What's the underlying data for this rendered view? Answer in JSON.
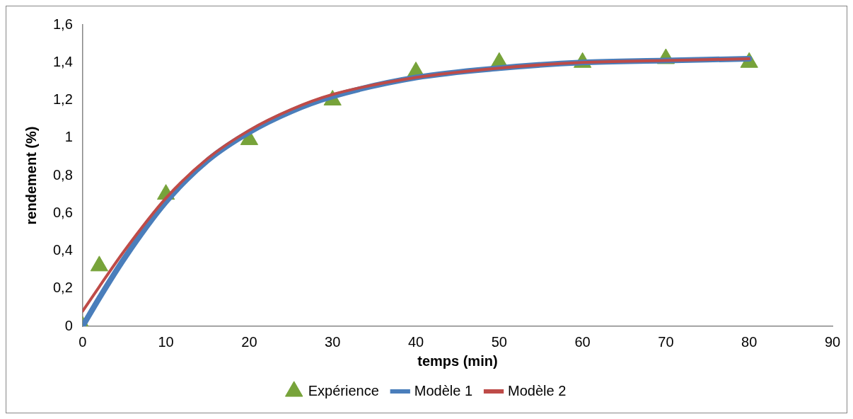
{
  "chart_data": {
    "type": "line",
    "xlabel": "temps (min)",
    "ylabel": "rendement (%)",
    "xlim": [
      0,
      90
    ],
    "xticks": [
      0,
      10,
      20,
      30,
      40,
      50,
      60,
      70,
      80,
      90
    ],
    "ylim": [
      0,
      1.6
    ],
    "yticks": [
      0,
      {
        "value": 0.2,
        "label": "0,2"
      },
      {
        "value": 0.4,
        "label": "0,4"
      },
      {
        "value": 0.6,
        "label": "0,6"
      },
      {
        "value": 0.8,
        "label": "0,8"
      },
      1,
      {
        "value": 1.2,
        "label": "1,2"
      },
      {
        "value": 1.4,
        "label": "1,4"
      },
      {
        "value": 1.6,
        "label": "1,6"
      }
    ],
    "grid": false,
    "legend": "bottom",
    "series": [
      {
        "name": "Expérience",
        "type": "scatter",
        "marker": "triangle",
        "color": "#77a33a",
        "x": [
          0,
          2,
          10,
          20,
          30,
          40,
          50,
          60,
          70,
          80
        ],
        "values": [
          0,
          0.32,
          0.7,
          0.99,
          1.2,
          1.35,
          1.4,
          1.4,
          1.42,
          1.4
        ]
      },
      {
        "name": "Modèle 1",
        "marker": "none",
        "color": "#4a7ebb",
        "x": [
          0,
          2,
          5,
          10,
          15,
          20,
          25,
          30,
          40,
          50,
          60,
          70,
          80
        ],
        "values": [
          0,
          0.15,
          0.36,
          0.66,
          0.88,
          1.03,
          1.14,
          1.22,
          1.32,
          1.37,
          1.4,
          1.41,
          1.42
        ]
      },
      {
        "name": "Modèle 2",
        "marker": "none",
        "color": "#be4b48",
        "x": [
          0,
          2,
          5,
          10,
          15,
          20,
          25,
          30,
          40,
          50,
          60,
          70,
          80
        ],
        "values": [
          0.08,
          0.21,
          0.4,
          0.68,
          0.89,
          1.04,
          1.15,
          1.23,
          1.32,
          1.37,
          1.4,
          1.41,
          1.42
        ]
      }
    ]
  }
}
